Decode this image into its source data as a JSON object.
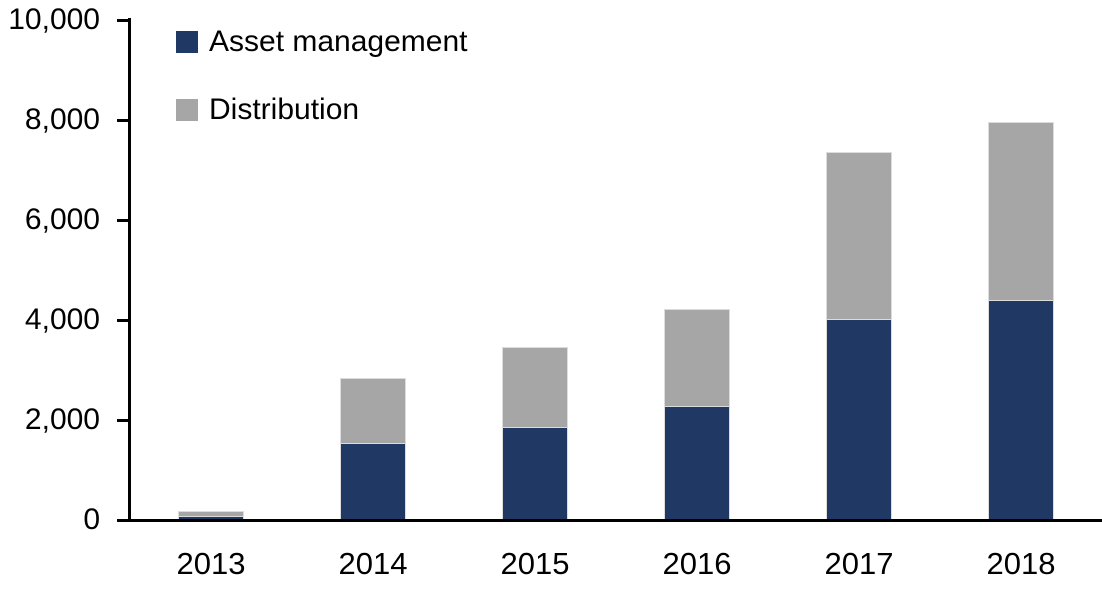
{
  "chart_data": {
    "type": "bar",
    "stacked": true,
    "title": "",
    "xlabel": "",
    "ylabel": "",
    "categories": [
      "2013",
      "2014",
      "2015",
      "2016",
      "2017",
      "2018"
    ],
    "series": [
      {
        "name": "Asset management",
        "color": "#1F3864",
        "values": [
          80,
          1550,
          1870,
          2290,
          4030,
          4410
        ]
      },
      {
        "name": "Distribution",
        "color": "#A6A6A6",
        "values": [
          110,
          1300,
          1600,
          1940,
          3340,
          3560
        ]
      }
    ],
    "totals": [
      190,
      2850,
      3470,
      4230,
      7370,
      7970
    ],
    "ylim": [
      0,
      10000
    ],
    "yticks": [
      0,
      2000,
      4000,
      6000,
      8000,
      10000
    ],
    "ytick_labels": [
      "0",
      "2,000",
      "4,000",
      "6,000",
      "8,000",
      "10,000"
    ],
    "grid": false,
    "legend_position": "top-left-inside",
    "axis_color": "#000000",
    "background_color": "#ffffff"
  }
}
